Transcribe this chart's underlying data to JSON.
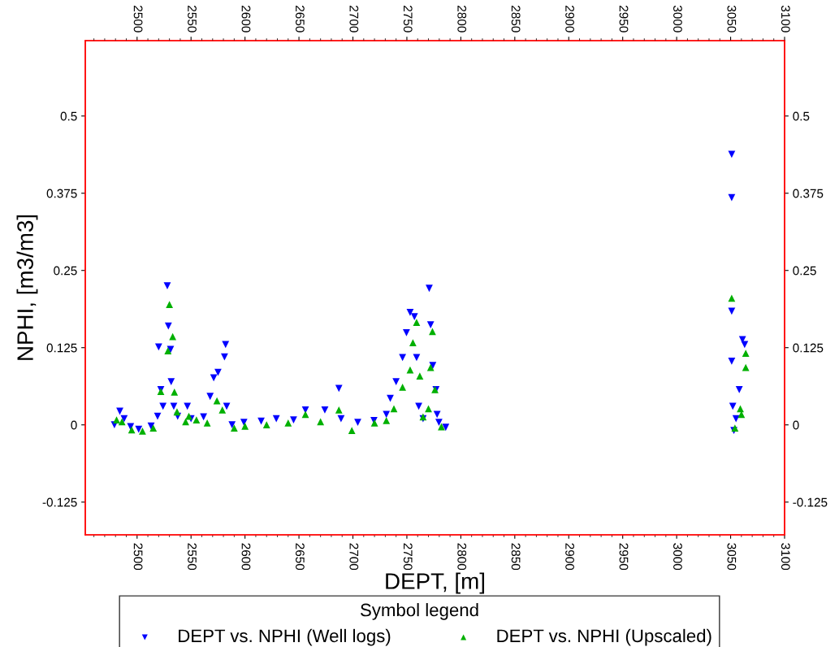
{
  "chart_data": {
    "type": "scatter",
    "xlabel": "DEPT, [m]",
    "ylabel": "NPHI, [m3/m3]",
    "legend_title": "Symbol legend",
    "legend": "bottom",
    "grid": false,
    "xlim": [
      2452,
      3100
    ],
    "xticks": [
      2500,
      2550,
      2600,
      2650,
      2700,
      2750,
      2800,
      2850,
      2900,
      2950,
      3000,
      3050,
      3100
    ],
    "x2lim": [
      2452,
      3100
    ],
    "x2ticks": [
      2500,
      2550,
      2600,
      2650,
      2700,
      2750,
      2800,
      2850,
      2900,
      2950,
      3000,
      3050,
      3100
    ],
    "ylim": [
      -0.178,
      0.622
    ],
    "yticks": [
      -0.125,
      0,
      0.125,
      0.25,
      0.375,
      0.5
    ],
    "y2lim": [
      -0.178,
      0.622
    ],
    "y2ticks": [
      -0.125,
      0,
      0.125,
      0.25,
      0.375,
      0.5
    ],
    "series": [
      {
        "name": "DEPT vs. NPHI (Well logs)",
        "color": "#0000ff",
        "marker": "triangle_down",
        "x": [
          2479,
          2484,
          2488,
          2494,
          2501.5,
          2513,
          2519,
          2520,
          2522,
          2524,
          2528,
          2529,
          2531,
          2531.6,
          2534,
          2537.6,
          2546.6,
          2550,
          2561.6,
          2567.7,
          2571,
          2575,
          2582,
          2581,
          2583,
          2588,
          2599,
          2615,
          2629,
          2645,
          2656,
          2674,
          2687,
          2689,
          2704.5,
          2719.5,
          2731,
          2734.6,
          2740,
          2746,
          2749.6,
          2753,
          2757,
          2759,
          2761,
          2765,
          2770.7,
          2772,
          2774,
          2777,
          2778,
          2779.7,
          2786,
          3051,
          3051,
          3051,
          3051,
          3052,
          3053,
          3055,
          3058,
          3061,
          3063
        ],
        "values": [
          0,
          0.022,
          0.01,
          -0.003,
          -0.007,
          -0.002,
          0.014,
          0.126,
          0.057,
          0.03,
          0.225,
          0.16,
          0.122,
          0.07,
          0.03,
          0.014,
          0.03,
          0.01,
          0.013,
          0.046,
          0.076,
          0.085,
          0.13,
          0.11,
          0.03,
          0,
          0.004,
          0.006,
          0.01,
          0.008,
          0.024,
          0.024,
          0.059,
          0.01,
          0.004,
          0.007,
          0.017,
          0.043,
          0.07,
          0.109,
          0.149,
          0.182,
          0.175,
          0.109,
          0.03,
          0.01,
          0.221,
          0.162,
          0.096,
          0.057,
          0.017,
          0.004,
          -0.004,
          0.438,
          0.368,
          0.184,
          0.103,
          0.03,
          -0.009,
          0.01,
          0.057,
          0.138,
          0.13
        ]
      },
      {
        "name": "DEPT vs. NPHI (Upscaled)",
        "color": "#00b000",
        "marker": "triangle",
        "x": [
          2481,
          2486,
          2495,
          2505,
          2515,
          2522,
          2528.6,
          2530,
          2533,
          2534.6,
          2537,
          2545,
          2548,
          2555,
          2565,
          2574,
          2579,
          2590,
          2600,
          2620,
          2640,
          2656,
          2670,
          2687,
          2699,
          2720,
          2731,
          2738,
          2746,
          2753,
          2755.6,
          2759,
          2762,
          2765,
          2770,
          2772,
          2773.7,
          2776,
          2782,
          3051,
          3054,
          3059,
          3060,
          3064,
          3064
        ],
        "values": [
          0.008,
          0.005,
          -0.008,
          -0.01,
          -0.005,
          0.054,
          0.12,
          0.195,
          0.143,
          0.053,
          0.021,
          0.005,
          0.014,
          0.008,
          0.003,
          0.039,
          0.024,
          -0.005,
          -0.002,
          0,
          0.003,
          0.017,
          0.005,
          0.024,
          -0.009,
          0.003,
          0.007,
          0.026,
          0.061,
          0.089,
          0.133,
          0.166,
          0.079,
          0.013,
          0.026,
          0.093,
          0.151,
          0.057,
          -0.003,
          0.205,
          -0.005,
          0.026,
          0.017,
          0.116,
          0.093
        ]
      }
    ]
  }
}
